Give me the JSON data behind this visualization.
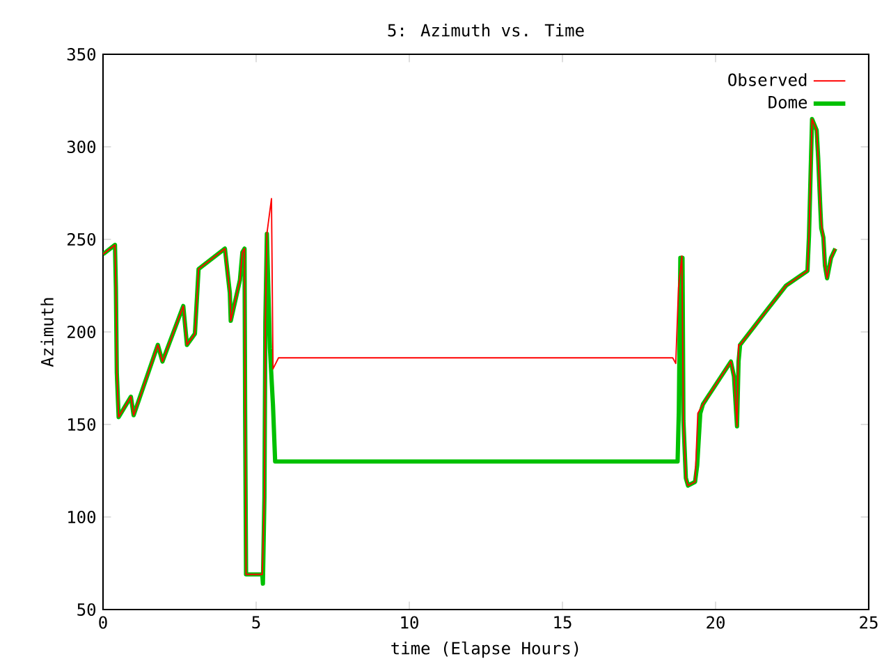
{
  "chart_data": {
    "type": "line",
    "title": "5: Azimuth vs. Time",
    "xlabel": "time (Elapse Hours)",
    "ylabel": "Azimuth",
    "xlim": [
      0,
      25
    ],
    "ylim": [
      50,
      350
    ],
    "xticks": [
      0,
      5,
      10,
      15,
      20,
      25
    ],
    "yticks": [
      50,
      100,
      150,
      200,
      250,
      300,
      350
    ],
    "legend": "top right",
    "series": [
      {
        "name": "Observed",
        "color": "#ff0000",
        "x": [
          0,
          0.39,
          0.42,
          0.45,
          0.51,
          0.91,
          1.0,
          1.79,
          1.94,
          2.62,
          2.74,
          3.0,
          3.12,
          3.98,
          4.14,
          4.17,
          4.47,
          4.55,
          4.62,
          4.64,
          4.67,
          5.2,
          5.27,
          5.3,
          5.35,
          5.5,
          5.55,
          5.73,
          18.6,
          18.7,
          18.79,
          18.9,
          18.95,
          19.03,
          19.1,
          19.33,
          19.42,
          19.59,
          20.5,
          20.6,
          20.7,
          20.75,
          20.8,
          21.64,
          22.3,
          23.0,
          23.05,
          23.1,
          23.15,
          23.3,
          23.35,
          23.42,
          23.45,
          23.52,
          23.57,
          23.64,
          23.77,
          23.91
        ],
        "values": [
          242,
          247,
          224,
          178,
          154,
          165,
          155,
          193,
          184,
          214,
          193,
          199,
          234,
          245,
          221,
          206,
          228,
          243,
          245,
          156,
          69,
          69,
          111,
          205,
          253,
          272,
          180,
          186,
          186,
          183,
          224,
          241,
          152,
          121,
          117,
          119,
          156,
          161,
          184,
          176,
          149,
          193,
          193,
          211,
          225,
          233,
          252,
          284,
          315,
          309,
          294,
          267,
          259,
          251,
          236,
          229,
          240,
          245
        ]
      },
      {
        "name": "Dome",
        "color": "#00c000",
        "x": [
          0,
          0.39,
          0.42,
          0.45,
          0.51,
          0.91,
          1.0,
          1.79,
          1.94,
          2.62,
          2.74,
          3.0,
          3.12,
          3.98,
          4.14,
          4.17,
          4.47,
          4.55,
          4.62,
          4.64,
          4.67,
          5.2,
          5.22,
          5.27,
          5.3,
          5.35,
          5.45,
          5.55,
          5.62,
          18.76,
          18.8,
          18.85,
          18.92,
          18.95,
          19.03,
          19.1,
          19.33,
          19.4,
          19.5,
          19.59,
          20.5,
          20.6,
          20.7,
          20.75,
          20.8,
          21.64,
          22.3,
          23.0,
          23.05,
          23.1,
          23.15,
          23.3,
          23.35,
          23.42,
          23.45,
          23.52,
          23.57,
          23.64,
          23.77,
          23.91
        ],
        "values": [
          242,
          247,
          224,
          178,
          154,
          165,
          155,
          193,
          184,
          214,
          193,
          199,
          234,
          245,
          221,
          206,
          228,
          243,
          245,
          156,
          69,
          69,
          64,
          111,
          205,
          253,
          191,
          160,
          130,
          130,
          157,
          240,
          240,
          152,
          121,
          117,
          119,
          128,
          156,
          161,
          184,
          176,
          149,
          184,
          193,
          211,
          225,
          233,
          252,
          284,
          315,
          309,
          294,
          267,
          256,
          251,
          236,
          229,
          240,
          245
        ]
      }
    ]
  }
}
